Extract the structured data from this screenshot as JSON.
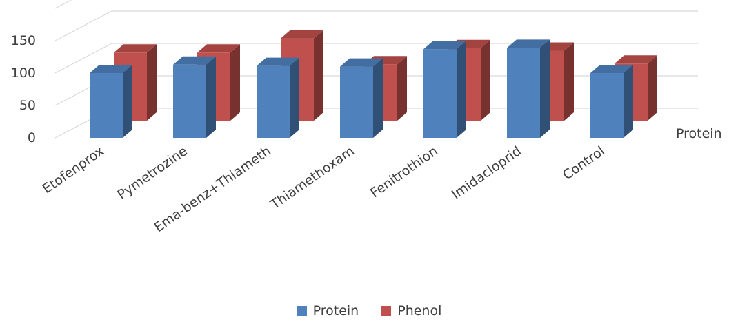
{
  "chart_data": {
    "type": "bar",
    "style": "3d-clustered-column",
    "categories": [
      "Etofenprox",
      "Pymetrozine",
      "Ema-benz+Thiameth",
      "Thiamethoxam",
      "Fenitrothion",
      "Imidacloprid",
      "Control"
    ],
    "series": [
      {
        "name": "Protein",
        "color": "#4f81bd",
        "values": [
          100,
          113,
          111,
          110,
          137,
          139,
          100
        ]
      },
      {
        "name": "Phenol",
        "color": "#c0504d",
        "values": [
          105,
          105,
          127,
          87,
          112,
          108,
          88
        ]
      }
    ],
    "title": "",
    "xlabel": "",
    "ylabel": "",
    "y_ticks": [
      "0",
      "50",
      "100",
      "150"
    ],
    "ylim": [
      0,
      200
    ],
    "depth_axis_labels": [
      "Protein"
    ],
    "grid": true,
    "legend_position": "bottom"
  }
}
